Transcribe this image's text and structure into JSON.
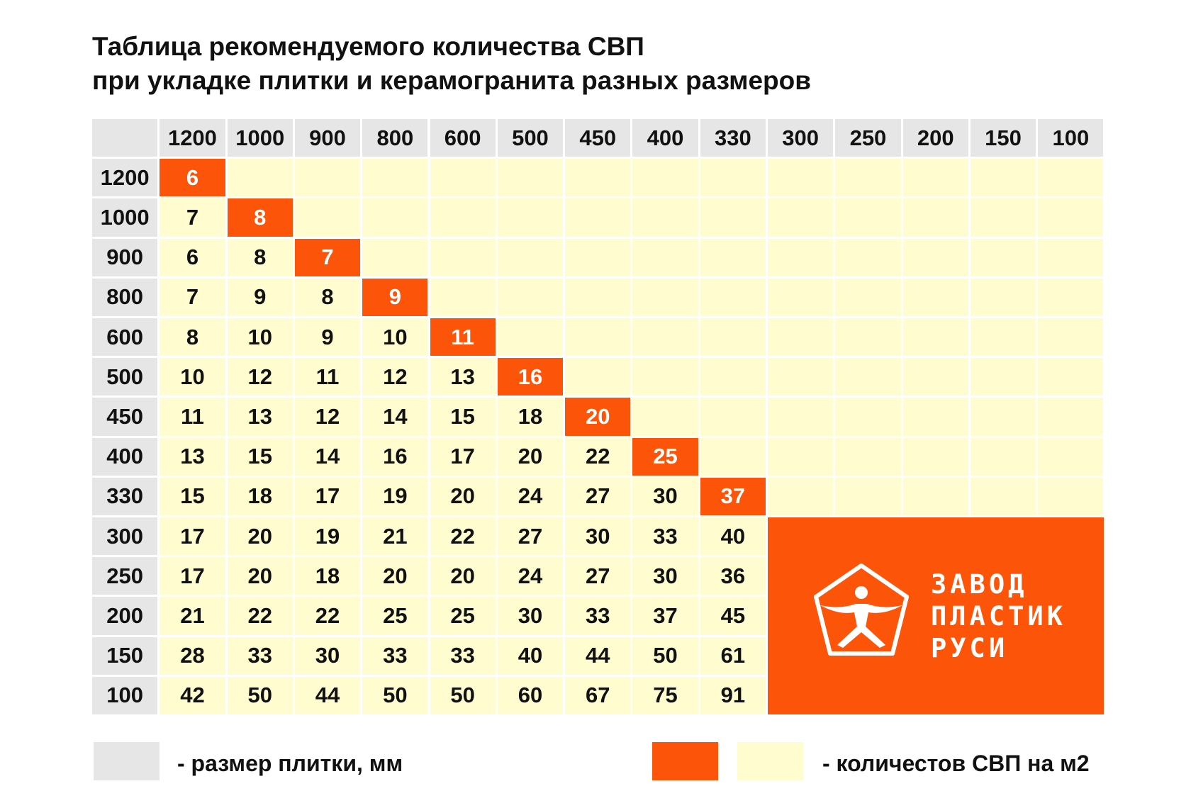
{
  "title": {
    "line1": "Таблица рекомендуемого количества СВП",
    "line2": "при укладке плитки и керамогранита разных размеров"
  },
  "table": {
    "columns": [
      "1200",
      "1000",
      "900",
      "800",
      "600",
      "500",
      "450",
      "400",
      "330",
      "300",
      "250",
      "200",
      "150",
      "100"
    ],
    "rows": [
      {
        "size": "1200",
        "values": [
          "6"
        ]
      },
      {
        "size": "1000",
        "values": [
          "7",
          "8"
        ]
      },
      {
        "size": "900",
        "values": [
          "6",
          "8",
          "7"
        ]
      },
      {
        "size": "800",
        "values": [
          "7",
          "9",
          "8",
          "9"
        ]
      },
      {
        "size": "600",
        "values": [
          "8",
          "10",
          "9",
          "10",
          "11"
        ]
      },
      {
        "size": "500",
        "values": [
          "10",
          "12",
          "11",
          "12",
          "13",
          "16"
        ]
      },
      {
        "size": "450",
        "values": [
          "11",
          "13",
          "12",
          "14",
          "15",
          "18",
          "20"
        ]
      },
      {
        "size": "400",
        "values": [
          "13",
          "15",
          "14",
          "16",
          "17",
          "20",
          "22",
          "25"
        ]
      },
      {
        "size": "330",
        "values": [
          "15",
          "18",
          "17",
          "19",
          "20",
          "24",
          "27",
          "30",
          "37"
        ]
      },
      {
        "size": "300",
        "values": [
          "17",
          "20",
          "19",
          "21",
          "22",
          "27",
          "30",
          "33",
          "40"
        ]
      },
      {
        "size": "250",
        "values": [
          "17",
          "20",
          "18",
          "20",
          "20",
          "24",
          "27",
          "30",
          "36"
        ]
      },
      {
        "size": "200",
        "values": [
          "21",
          "22",
          "22",
          "25",
          "25",
          "30",
          "33",
          "37",
          "45"
        ]
      },
      {
        "size": "150",
        "values": [
          "28",
          "33",
          "30",
          "33",
          "33",
          "40",
          "44",
          "50",
          "61"
        ]
      },
      {
        "size": "100",
        "values": [
          "42",
          "50",
          "44",
          "50",
          "50",
          "60",
          "67",
          "75",
          "91"
        ]
      }
    ]
  },
  "logo": {
    "icon": "pentagon-man-logo-icon",
    "lines": [
      "ЗАВОД",
      "ПЛАСТИК",
      "РУСИ"
    ]
  },
  "legend": {
    "size_label": "- размер плитки, мм",
    "count_label": "- количестов СВП на м2"
  },
  "colors": {
    "header_gray": "#e6e6e6",
    "value_yellow": "#fffdd0",
    "accent_orange": "#fc5509",
    "text": "#111111"
  }
}
